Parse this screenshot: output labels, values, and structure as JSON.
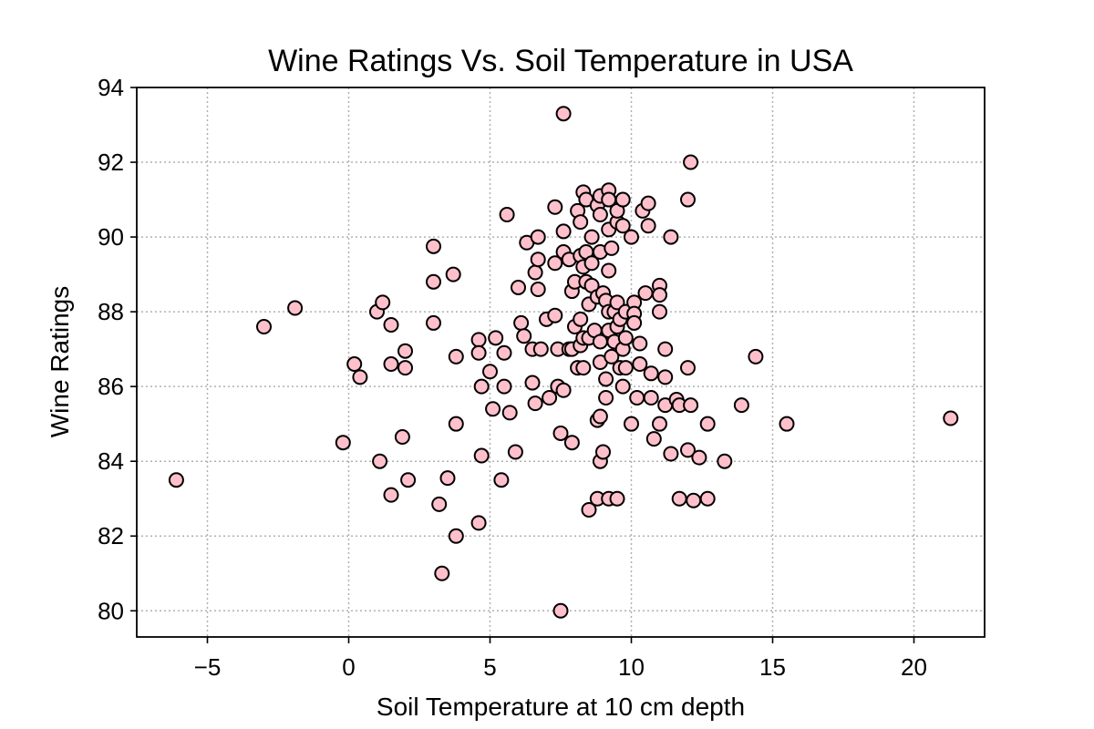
{
  "chart_data": {
    "type": "scatter",
    "title": "Wine Ratings Vs. Soil Temperature in USA",
    "xlabel": "Soil Temperature at 10 cm depth",
    "ylabel": "Wine Ratings",
    "xlim": [
      -7.5,
      22.5
    ],
    "ylim": [
      79.3,
      94
    ],
    "xticks": [
      -5,
      0,
      5,
      10,
      15,
      20
    ],
    "xtick_labels": [
      "−5",
      "0",
      "5",
      "10",
      "15",
      "20"
    ],
    "yticks": [
      80,
      82,
      84,
      86,
      88,
      90,
      92,
      94
    ],
    "ytick_labels": [
      "80",
      "82",
      "84",
      "86",
      "88",
      "90",
      "92",
      "94"
    ],
    "grid": true,
    "marker_color": "#ffc0cb",
    "marker_edge_color": "#000000",
    "points": [
      [
        -6.1,
        83.5
      ],
      [
        -3.0,
        87.6
      ],
      [
        -1.9,
        88.1
      ],
      [
        -0.2,
        84.5
      ],
      [
        0.2,
        86.6
      ],
      [
        0.4,
        86.25
      ],
      [
        1.0,
        88.0
      ],
      [
        1.1,
        84.0
      ],
      [
        1.2,
        88.25
      ],
      [
        1.5,
        87.65
      ],
      [
        1.5,
        86.6
      ],
      [
        1.5,
        83.1
      ],
      [
        1.9,
        84.65
      ],
      [
        2.0,
        86.95
      ],
      [
        2.0,
        86.5
      ],
      [
        2.1,
        83.5
      ],
      [
        3.0,
        89.75
      ],
      [
        3.0,
        88.8
      ],
      [
        3.0,
        87.7
      ],
      [
        3.2,
        82.85
      ],
      [
        3.3,
        81.0
      ],
      [
        3.5,
        83.55
      ],
      [
        3.7,
        89.0
      ],
      [
        3.8,
        86.8
      ],
      [
        3.8,
        85.0
      ],
      [
        3.8,
        82.0
      ],
      [
        4.6,
        87.25
      ],
      [
        4.6,
        86.9
      ],
      [
        4.6,
        82.35
      ],
      [
        4.7,
        86.0
      ],
      [
        4.7,
        84.15
      ],
      [
        5.0,
        86.4
      ],
      [
        5.1,
        85.4
      ],
      [
        5.2,
        87.3
      ],
      [
        5.4,
        83.5
      ],
      [
        5.5,
        86.0
      ],
      [
        5.5,
        86.9
      ],
      [
        5.6,
        90.6
      ],
      [
        5.7,
        85.3
      ],
      [
        5.9,
        84.25
      ],
      [
        6.0,
        88.65
      ],
      [
        6.1,
        87.7
      ],
      [
        6.2,
        87.35
      ],
      [
        6.3,
        89.85
      ],
      [
        6.5,
        87.0
      ],
      [
        6.5,
        86.1
      ],
      [
        6.6,
        85.55
      ],
      [
        6.6,
        89.05
      ],
      [
        6.7,
        88.6
      ],
      [
        6.7,
        89.4
      ],
      [
        6.8,
        87.0
      ],
      [
        6.7,
        90.0
      ],
      [
        7.0,
        87.8
      ],
      [
        7.1,
        85.7
      ],
      [
        7.3,
        90.8
      ],
      [
        7.3,
        89.3
      ],
      [
        7.3,
        87.9
      ],
      [
        7.4,
        87.0
      ],
      [
        7.4,
        86.0
      ],
      [
        7.5,
        84.75
      ],
      [
        7.5,
        80.0
      ],
      [
        7.6,
        93.3
      ],
      [
        7.6,
        90.15
      ],
      [
        7.6,
        89.6
      ],
      [
        7.6,
        85.9
      ],
      [
        7.8,
        89.4
      ],
      [
        7.8,
        87.0
      ],
      [
        7.9,
        88.55
      ],
      [
        7.9,
        87.0
      ],
      [
        7.9,
        84.5
      ],
      [
        8.0,
        88.8
      ],
      [
        8.0,
        87.6
      ],
      [
        8.1,
        90.7
      ],
      [
        8.1,
        86.5
      ],
      [
        8.2,
        90.4
      ],
      [
        8.2,
        89.5
      ],
      [
        8.2,
        87.8
      ],
      [
        8.2,
        87.1
      ],
      [
        8.3,
        91.2
      ],
      [
        8.3,
        89.2
      ],
      [
        8.3,
        87.3
      ],
      [
        8.3,
        86.5
      ],
      [
        8.4,
        91.0
      ],
      [
        8.4,
        89.6
      ],
      [
        8.4,
        88.8
      ],
      [
        8.5,
        88.2
      ],
      [
        8.5,
        87.3
      ],
      [
        8.5,
        82.7
      ],
      [
        8.6,
        90.0
      ],
      [
        8.6,
        89.3
      ],
      [
        8.6,
        88.7
      ],
      [
        8.7,
        87.5
      ],
      [
        8.8,
        90.85
      ],
      [
        8.8,
        88.4
      ],
      [
        8.8,
        85.1
      ],
      [
        8.8,
        83.0
      ],
      [
        8.9,
        91.1
      ],
      [
        8.9,
        90.6
      ],
      [
        8.9,
        89.6
      ],
      [
        8.9,
        87.2
      ],
      [
        8.9,
        86.65
      ],
      [
        8.9,
        84.0
      ],
      [
        8.9,
        85.2
      ],
      [
        9.0,
        88.5
      ],
      [
        9.0,
        84.25
      ],
      [
        9.1,
        88.3
      ],
      [
        9.1,
        85.7
      ],
      [
        9.1,
        86.2
      ],
      [
        9.2,
        91.25
      ],
      [
        9.2,
        91.0
      ],
      [
        9.2,
        90.2
      ],
      [
        9.2,
        89.1
      ],
      [
        9.2,
        88.0
      ],
      [
        9.2,
        87.5
      ],
      [
        9.2,
        83.0
      ],
      [
        9.3,
        89.7
      ],
      [
        9.3,
        86.8
      ],
      [
        9.4,
        87.2
      ],
      [
        9.4,
        88.0
      ],
      [
        9.5,
        90.4
      ],
      [
        9.5,
        90.7
      ],
      [
        9.5,
        88.25
      ],
      [
        9.5,
        87.6
      ],
      [
        9.5,
        83.0
      ],
      [
        9.6,
        87.8
      ],
      [
        9.6,
        86.5
      ],
      [
        9.7,
        91.0
      ],
      [
        9.7,
        90.3
      ],
      [
        9.7,
        87.0
      ],
      [
        9.7,
        86.0
      ],
      [
        9.8,
        88.0
      ],
      [
        9.8,
        86.5
      ],
      [
        9.8,
        87.3
      ],
      [
        10.0,
        90.0
      ],
      [
        10.0,
        85.0
      ],
      [
        10.1,
        88.25
      ],
      [
        10.1,
        87.95
      ],
      [
        10.1,
        87.7
      ],
      [
        10.2,
        85.7
      ],
      [
        10.3,
        87.15
      ],
      [
        10.3,
        86.6
      ],
      [
        10.4,
        90.7
      ],
      [
        10.5,
        88.5
      ],
      [
        10.6,
        90.9
      ],
      [
        10.6,
        90.3
      ],
      [
        10.7,
        86.35
      ],
      [
        10.7,
        85.7
      ],
      [
        10.8,
        84.6
      ],
      [
        11.0,
        88.7
      ],
      [
        11.0,
        88.45
      ],
      [
        11.0,
        88.0
      ],
      [
        11.0,
        85.0
      ],
      [
        11.2,
        87.0
      ],
      [
        11.2,
        86.25
      ],
      [
        11.2,
        85.5
      ],
      [
        11.4,
        90.0
      ],
      [
        11.4,
        84.2
      ],
      [
        11.6,
        85.65
      ],
      [
        11.7,
        85.5
      ],
      [
        11.7,
        83.0
      ],
      [
        12.0,
        91.0
      ],
      [
        12.0,
        86.5
      ],
      [
        12.1,
        92.0
      ],
      [
        12.1,
        85.5
      ],
      [
        12.0,
        84.3
      ],
      [
        12.2,
        82.95
      ],
      [
        12.4,
        84.1
      ],
      [
        12.7,
        85.0
      ],
      [
        12.7,
        83.0
      ],
      [
        13.3,
        84.0
      ],
      [
        13.9,
        85.5
      ],
      [
        14.4,
        86.8
      ],
      [
        15.5,
        85.0
      ],
      [
        21.3,
        85.15
      ]
    ]
  }
}
